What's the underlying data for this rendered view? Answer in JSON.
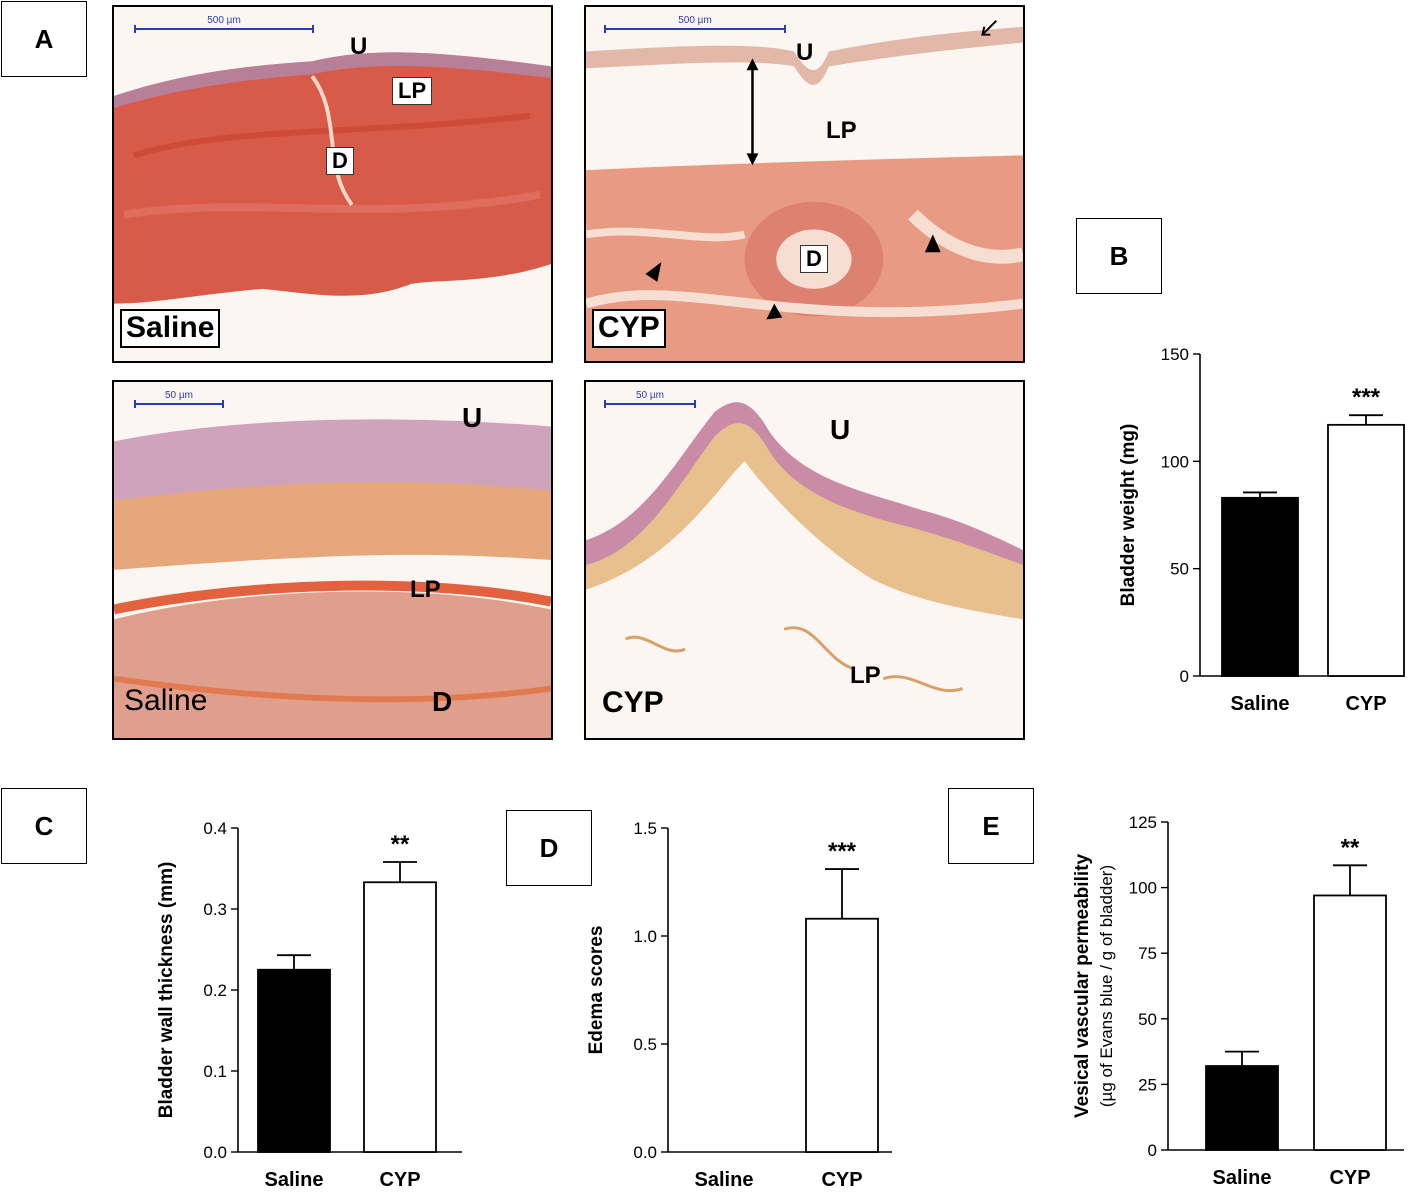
{
  "panel_labels": {
    "a": "A",
    "b": "B",
    "c": "C",
    "d": "D",
    "e": "E"
  },
  "micrographs": {
    "saline_low": {
      "condition": "Saline",
      "scale": "500 µm",
      "u": "U",
      "lp": "LP",
      "d": "D"
    },
    "cyp_low": {
      "condition": "CYP",
      "scale": "500 µm",
      "u": "U",
      "lp": "LP",
      "d": "D"
    },
    "saline_high": {
      "condition": "Saline",
      "scale": "50 µm",
      "u": "U",
      "lp": "LP",
      "d": "D"
    },
    "cyp_high": {
      "condition": "CYP",
      "scale": "50 µm",
      "u": "U",
      "lp": "LP"
    }
  },
  "chart_data": [
    {
      "panel": "B",
      "type": "bar",
      "categories": [
        "Saline",
        "CYP"
      ],
      "values": [
        83,
        117
      ],
      "errors": [
        2.5,
        4.5
      ],
      "significance": [
        "",
        "***"
      ],
      "ylabel": "Bladder weight (mg)",
      "ylim": [
        0,
        150
      ],
      "yticks": [
        "0",
        "50",
        "100",
        "150"
      ],
      "bar_fills": [
        "#000000",
        "#ffffff"
      ]
    },
    {
      "panel": "C",
      "type": "bar",
      "categories": [
        "Saline",
        "CYP"
      ],
      "values": [
        0.225,
        0.333
      ],
      "errors": [
        0.018,
        0.025
      ],
      "significance": [
        "",
        "**"
      ],
      "ylabel": "Bladder wall thickness (mm)",
      "ylim": [
        0,
        0.4
      ],
      "yticks": [
        "0.0",
        "0.1",
        "0.2",
        "0.3",
        "0.4"
      ],
      "bar_fills": [
        "#000000",
        "#ffffff"
      ]
    },
    {
      "panel": "D",
      "type": "bar",
      "categories": [
        "Saline",
        "CYP"
      ],
      "values": [
        0,
        1.08
      ],
      "errors": [
        0,
        0.23
      ],
      "significance": [
        "",
        "***"
      ],
      "ylabel": "Edema scores",
      "ylim": [
        0,
        1.5
      ],
      "yticks": [
        "0.0",
        "0.5",
        "1.0",
        "1.5"
      ],
      "bar_fills": [
        "#000000",
        "#ffffff"
      ]
    },
    {
      "panel": "E",
      "type": "bar",
      "categories": [
        "Saline",
        "CYP"
      ],
      "values": [
        32,
        97
      ],
      "errors": [
        5.5,
        11.5
      ],
      "significance": [
        "",
        "**"
      ],
      "ylabel": "Vesical vascular permeability",
      "ylabel2": "(µg of Evans blue / g of bladder)",
      "ylim": [
        0,
        125
      ],
      "yticks": [
        "0",
        "25",
        "50",
        "75",
        "100",
        "125"
      ],
      "bar_fills": [
        "#000000",
        "#ffffff"
      ]
    }
  ]
}
